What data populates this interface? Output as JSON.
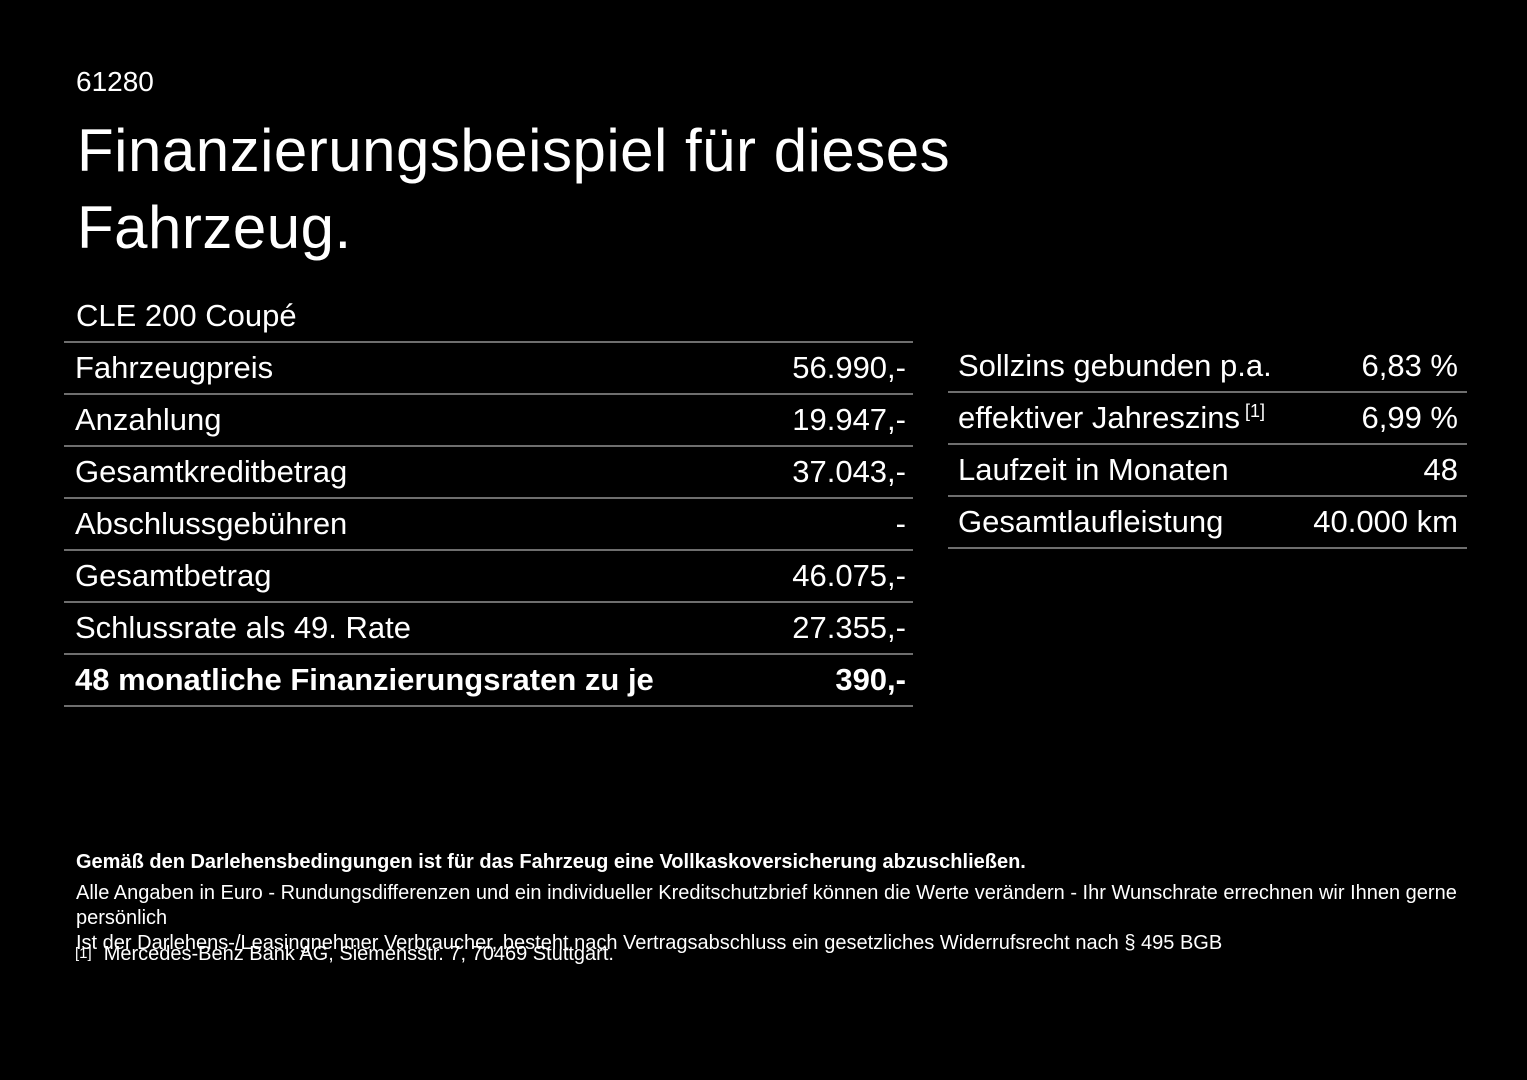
{
  "page": {
    "doc_number": "61280",
    "title": {
      "line1": "Finanzierungsbeispiel für dieses",
      "line2": "Fahrzeug."
    },
    "model": "CLE 200 Coupé"
  },
  "tables": {
    "left": {
      "rows": [
        {
          "label": "Fahrzeugpreis",
          "value": "56.990,-"
        },
        {
          "label": "Anzahlung",
          "value": "19.947,-"
        },
        {
          "label": "Gesamtkreditbetrag",
          "value": "37.043,-"
        },
        {
          "label": "Abschlussgebühren",
          "value": "-"
        },
        {
          "label": "Gesamtbetrag",
          "value": "46.075,-"
        },
        {
          "label": "Schlussrate als 49. Rate",
          "value": "27.355,-"
        },
        {
          "label": "48 monatliche Finanzierungsraten zu je",
          "value": "390,-"
        }
      ]
    },
    "right": {
      "rows": [
        {
          "label": "Sollzins gebunden p.a.",
          "value": "6,83 %"
        },
        {
          "label": "effektiver Jahreszins",
          "footnote_ref": "[1]",
          "value": "6,99 %"
        },
        {
          "label": "Laufzeit in Monaten",
          "value": "48"
        },
        {
          "label": "Gesamtlaufleistung",
          "value": "40.000 km"
        }
      ]
    }
  },
  "footer": {
    "requirement": "Gemäß den Darlehensbedingungen ist für das Fahrzeug eine Vollkaskoversicherung abzuschließen.",
    "note_line1": "Alle Angaben in Euro - Rundungsdifferenzen und ein individueller Kreditschutzbrief können die Werte verändern - Ihr Wunschrate errechnen wir Ihnen gerne persönlich",
    "note_line2": "Ist der Darlehens-/Leasingnehmer Verbraucher, besteht nach Vertragsabschluss ein gesetzliches Widerrufsrecht nach § 495 BGB",
    "footnote_marker": "[1]",
    "footnote_text": "Mercedes-Benz Bank AG, Siemensstr. 7, 70469 Stuttgart."
  },
  "colors": {
    "background": "#000000",
    "text": "#ffffff",
    "divider": "#6e6e6e"
  }
}
